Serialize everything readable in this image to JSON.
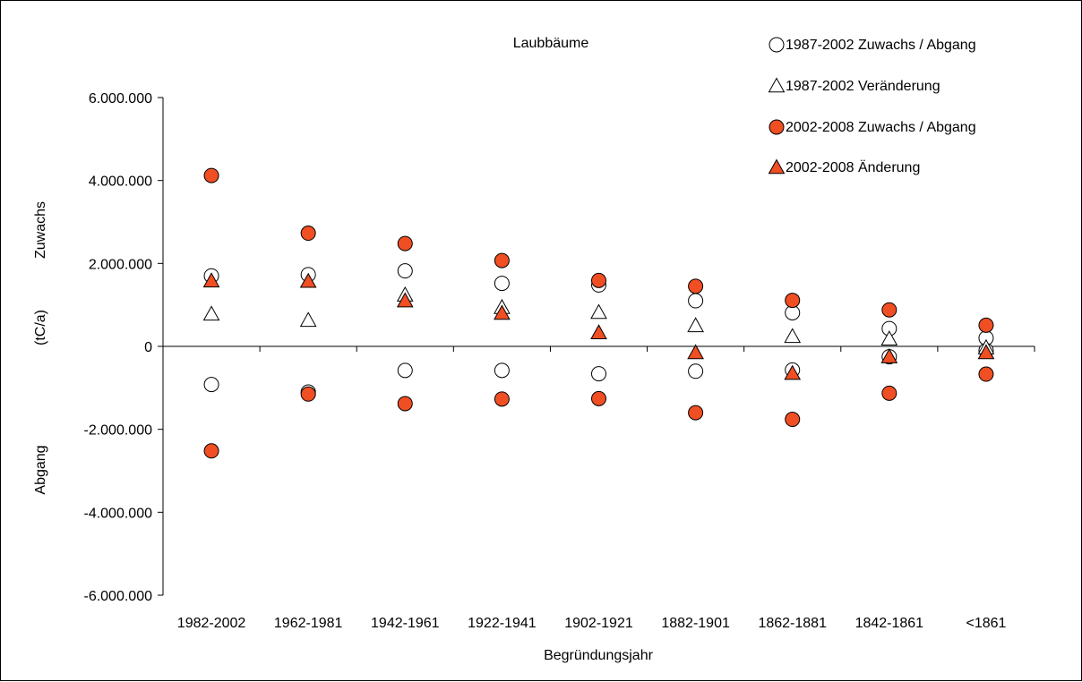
{
  "chart_data": {
    "type": "scatter",
    "title": "Laubbäume",
    "xlabel": "Begründungsjahr",
    "ylabel_parts": [
      "Abgang",
      "(tC/a)",
      "Zuwachs"
    ],
    "ylim": [
      -6000000,
      6000000
    ],
    "y_ticks": [
      {
        "value": 6000000,
        "label": "6.000.000"
      },
      {
        "value": 4000000,
        "label": "4.000.000"
      },
      {
        "value": 2000000,
        "label": "2.000.000"
      },
      {
        "value": 0,
        "label": "0"
      },
      {
        "value": -2000000,
        "label": "-2.000.000"
      },
      {
        "value": -4000000,
        "label": "-4.000.000"
      },
      {
        "value": -6000000,
        "label": "-6.000.000"
      }
    ],
    "categories": [
      "1982-2002",
      "1962-1981",
      "1942-1961",
      "1922-1941",
      "1902-1921",
      "1882-1901",
      "1862-1881",
      "1842-1861",
      "<1861"
    ],
    "grid": false,
    "legend_position": "top-right",
    "series": [
      {
        "name": "1987-2002 Zuwachs / Abgang",
        "marker": "circle",
        "fill": "#ffffff",
        "stroke": "#000000",
        "values": [
          1700000,
          1730000,
          1820000,
          1520000,
          1480000,
          1100000,
          810000,
          430000,
          200000
        ],
        "values_negative": [
          -920000,
          -1100000,
          -580000,
          -580000,
          -660000,
          -600000,
          -570000,
          -250000,
          -100000
        ]
      },
      {
        "name": "1987-2002 Veränderung",
        "marker": "triangle",
        "fill": "#ffffff",
        "stroke": "#000000",
        "values": [
          780000,
          630000,
          1240000,
          940000,
          820000,
          500000,
          240000,
          180000,
          -30000
        ]
      },
      {
        "name": "2002-2008 Zuwachs / Abgang",
        "marker": "circle",
        "fill": "#f04e23",
        "stroke": "#000000",
        "values": [
          4120000,
          2730000,
          2480000,
          2070000,
          1590000,
          1450000,
          1110000,
          880000,
          510000
        ],
        "values_negative": [
          -2520000,
          -1150000,
          -1380000,
          -1270000,
          -1260000,
          -1600000,
          -1760000,
          -1130000,
          -670000
        ]
      },
      {
        "name": "2002-2008 Änderung",
        "marker": "triangle",
        "fill": "#f04e23",
        "stroke": "#000000",
        "values": [
          1580000,
          1570000,
          1100000,
          800000,
          330000,
          -150000,
          -650000,
          -250000,
          -150000
        ]
      }
    ]
  }
}
